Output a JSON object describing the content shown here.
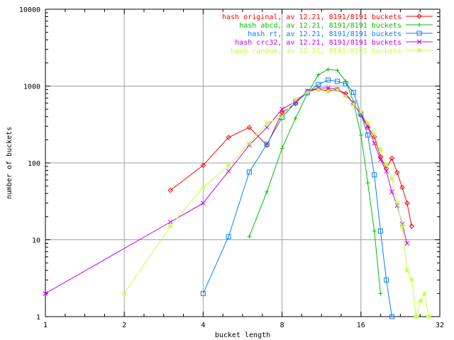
{
  "chart_data": {
    "type": "line",
    "title": "",
    "xlabel": "bucket length",
    "ylabel": "number of buckets",
    "xscale": "log",
    "yscale": "log",
    "xlim": [
      1,
      32
    ],
    "ylim": [
      1,
      10000
    ],
    "x_ticks": [
      1,
      2,
      4,
      8,
      16,
      32
    ],
    "y_ticks": [
      1,
      10,
      100,
      1000,
      10000
    ],
    "grid": true,
    "legend_position": "top-right",
    "series": [
      {
        "name": "hash original, av 12.21, 8191/8191 buckets",
        "color": "#ff0000",
        "marker": "diamond",
        "x": [
          3,
          4,
          5,
          6,
          7,
          8,
          9,
          10,
          11,
          12,
          13,
          14,
          15,
          16,
          17,
          18,
          19,
          20,
          21,
          22,
          23,
          24,
          25
        ],
        "y": [
          44,
          93,
          215,
          290,
          170,
          450,
          590,
          860,
          910,
          870,
          900,
          800,
          590,
          420,
          290,
          220,
          120,
          85,
          115,
          75,
          48,
          30,
          15
        ]
      },
      {
        "name": "hash abcd, av 12.21, 8191/8191 buckets",
        "color": "#00c000",
        "marker": "plus",
        "x": [
          6,
          7,
          8,
          9,
          10,
          11,
          12,
          13,
          14,
          15,
          16,
          17,
          18,
          19
        ],
        "y": [
          11,
          42,
          155,
          380,
          800,
          1400,
          1650,
          1600,
          1150,
          620,
          230,
          55,
          13,
          2
        ]
      },
      {
        "name": "hash rt, av 12.21, 8191/8191 buckets",
        "color": "#0080ff",
        "marker": "square",
        "x": [
          4,
          5,
          6,
          7,
          8,
          9,
          10,
          11,
          12,
          13,
          14,
          15,
          16,
          17,
          18,
          19,
          20,
          21
        ],
        "y": [
          2,
          11,
          76,
          175,
          390,
          610,
          820,
          1050,
          1200,
          1150,
          1070,
          830,
          430,
          230,
          70,
          13,
          3,
          1
        ]
      },
      {
        "name": "hash crc32, av 12.21, 8191/8191 buckets",
        "color": "#c000ff",
        "marker": "cross",
        "x": [
          1,
          3,
          4,
          5,
          6,
          7,
          8,
          9,
          10,
          11,
          12,
          13,
          14,
          15,
          16,
          17,
          18,
          19,
          20,
          21,
          22,
          23,
          24
        ],
        "y": [
          2,
          17,
          30,
          78,
          170,
          290,
          500,
          630,
          860,
          940,
          950,
          910,
          770,
          600,
          440,
          300,
          180,
          110,
          78,
          42,
          28,
          16,
          9
        ]
      },
      {
        "name": "hash random, av 12.21, 8191/8191 buckets",
        "color": "#c0ff40",
        "marker": "star",
        "x": [
          2,
          3,
          4,
          5,
          6,
          7,
          8,
          9,
          10,
          11,
          12,
          13,
          14,
          15,
          16,
          17,
          18,
          19,
          20,
          21,
          22,
          23,
          24,
          25,
          26,
          27,
          28,
          29
        ],
        "y": [
          2,
          15,
          48,
          92,
          180,
          330,
          400,
          670,
          830,
          900,
          850,
          890,
          740,
          580,
          460,
          330,
          240,
          150,
          95,
          62,
          30,
          15,
          4,
          3,
          1,
          1.6,
          2,
          1
        ]
      }
    ]
  }
}
